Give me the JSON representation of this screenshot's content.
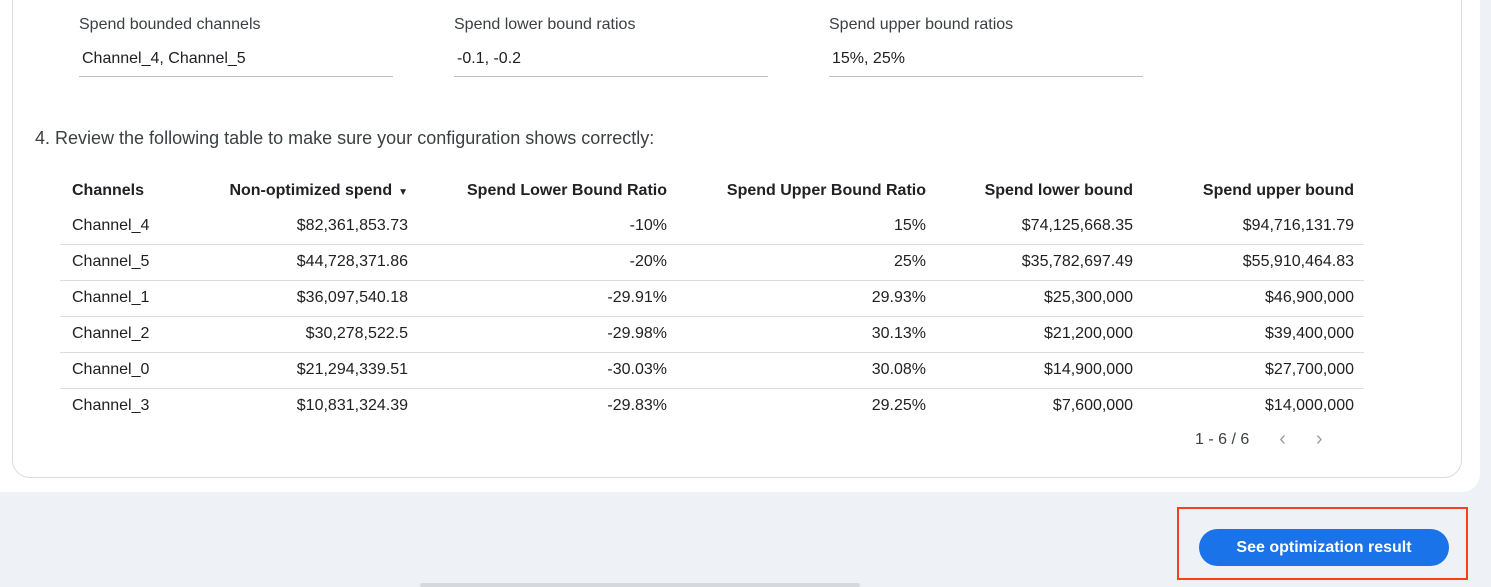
{
  "fields": [
    {
      "label": "Spend bounded channels",
      "value": "Channel_4, Channel_5"
    },
    {
      "label": "Spend lower bound ratios",
      "value": "-0.1, -0.2"
    },
    {
      "label": "Spend upper bound ratios",
      "value": "15%, 25%"
    }
  ],
  "step_text": "4. Review the following table to make sure your configuration shows correctly:",
  "table": {
    "headers": [
      "Channels",
      "Non-optimized spend",
      "Spend Lower Bound Ratio",
      "Spend Upper Bound Ratio",
      "Spend lower bound",
      "Spend upper bound"
    ],
    "sort_indicator": "▼",
    "rows": [
      [
        "Channel_4",
        "$82,361,853.73",
        "-10%",
        "15%",
        "$74,125,668.35",
        "$94,716,131.79"
      ],
      [
        "Channel_5",
        "$44,728,371.86",
        "-20%",
        "25%",
        "$35,782,697.49",
        "$55,910,464.83"
      ],
      [
        "Channel_1",
        "$36,097,540.18",
        "-29.91%",
        "29.93%",
        "$25,300,000",
        "$46,900,000"
      ],
      [
        "Channel_2",
        "$30,278,522.5",
        "-29.98%",
        "30.13%",
        "$21,200,000",
        "$39,400,000"
      ],
      [
        "Channel_0",
        "$21,294,339.51",
        "-30.03%",
        "30.08%",
        "$14,900,000",
        "$27,700,000"
      ],
      [
        "Channel_3",
        "$10,831,324.39",
        "-29.83%",
        "29.25%",
        "$7,600,000",
        "$14,000,000"
      ]
    ]
  },
  "pager": {
    "text": "1 - 6 / 6",
    "prev": "‹",
    "next": "›"
  },
  "button": {
    "label": "See optimization result"
  },
  "colors": {
    "accent": "#1a73e8",
    "highlight": "#f4411e"
  }
}
